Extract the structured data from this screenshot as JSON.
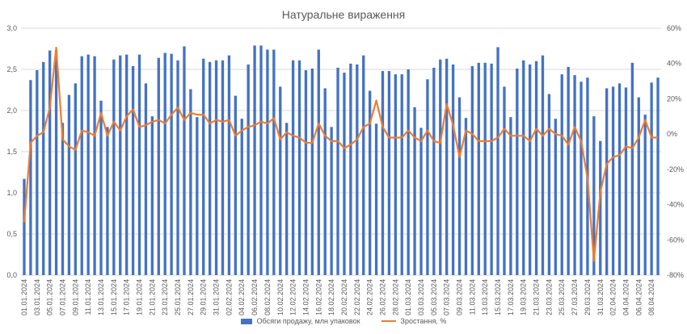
{
  "chart_data": {
    "type": "bar",
    "title": "Натуральне вираження",
    "colors": {
      "bars": "#4472C4",
      "line": "#ED7D31",
      "grid": "#d9d9d9",
      "text": "#595959"
    },
    "x": [
      "01.01.2024",
      "02.01.2024",
      "03.01.2024",
      "04.01.2024",
      "05.01.2024",
      "06.01.2024",
      "07.01.2024",
      "08.01.2024",
      "09.01.2024",
      "10.01.2024",
      "11.01.2024",
      "12.01.2024",
      "13.01.2024",
      "14.01.2024",
      "15.01.2024",
      "16.01.2024",
      "17.01.2024",
      "18.01.2024",
      "19.01.2024",
      "20.01.2024",
      "21.01.2024",
      "22.01.2024",
      "23.01.2024",
      "24.01.2024",
      "25.01.2024",
      "26.01.2024",
      "27.01.2024",
      "28.01.2024",
      "29.01.2024",
      "30.01.2024",
      "31.01.2024",
      "01.02.2024",
      "02.02.2024",
      "03.02.2024",
      "04.02.2024",
      "05.02.2024",
      "06.02.2024",
      "07.02.2024",
      "08.02.2024",
      "09.02.2024",
      "10.02.2024",
      "11.02.2024",
      "12.02.2024",
      "13.02.2024",
      "14.02.2024",
      "15.02.2024",
      "16.02.2024",
      "17.02.2024",
      "18.02.2024",
      "19.02.2024",
      "20.02.2024",
      "21.02.2024",
      "22.02.2024",
      "23.02.2024",
      "24.02.2024",
      "25.02.2024",
      "26.02.2024",
      "27.02.2024",
      "28.02.2024",
      "29.02.2024",
      "01.03.2024",
      "02.03.2024",
      "03.03.2024",
      "04.03.2024",
      "05.03.2024",
      "06.03.2024",
      "07.03.2024",
      "08.03.2024",
      "09.03.2024",
      "10.03.2024",
      "11.03.2024",
      "12.03.2024",
      "13.03.2024",
      "14.03.2024",
      "15.03.2024",
      "16.03.2024",
      "17.03.2024",
      "18.03.2024",
      "19.03.2024",
      "20.03.2024",
      "21.03.2024",
      "22.03.2024",
      "23.03.2024",
      "24.03.2024",
      "25.03.2024",
      "26.03.2024",
      "27.03.2024",
      "28.03.2024",
      "29.03.2024",
      "30.03.2024",
      "31.03.2024",
      "01.04.2024",
      "02.04.2024",
      "03.04.2024",
      "04.04.2024",
      "05.04.2024",
      "06.04.2024",
      "07.04.2024",
      "08.04.2024",
      "09.04.2024"
    ],
    "tick_every": 2,
    "series": [
      {
        "name": "Обсяги продажу, млн упаковок",
        "type": "bar",
        "axis": "left",
        "values": [
          1.17,
          2.37,
          2.49,
          2.59,
          2.73,
          2.73,
          1.85,
          2.19,
          2.33,
          2.66,
          2.68,
          2.66,
          2.12,
          1.8,
          2.62,
          2.67,
          2.68,
          2.54,
          2.68,
          2.33,
          1.93,
          2.64,
          2.7,
          2.69,
          2.61,
          2.78,
          2.26,
          1.92,
          2.63,
          2.59,
          2.61,
          2.61,
          2.67,
          2.18,
          1.9,
          2.56,
          2.79,
          2.79,
          2.74,
          2.74,
          2.29,
          1.85,
          2.61,
          2.61,
          2.49,
          2.51,
          2.74,
          2.27,
          1.8,
          2.52,
          2.46,
          2.57,
          2.56,
          2.67,
          2.24,
          1.84,
          2.48,
          2.48,
          2.44,
          2.44,
          2.5,
          2.04,
          1.79,
          2.38,
          2.52,
          2.62,
          2.63,
          2.56,
          2.16,
          1.91,
          2.54,
          2.58,
          2.58,
          2.57,
          2.77,
          2.29,
          1.92,
          2.51,
          2.61,
          2.56,
          2.6,
          2.67,
          2.2,
          1.9,
          2.44,
          2.53,
          2.43,
          2.35,
          2.4,
          1.93,
          1.63,
          2.27,
          2.29,
          2.33,
          2.28,
          2.58,
          2.16,
          1.95,
          2.34,
          2.4
        ]
      },
      {
        "name": "Зростання, %",
        "type": "line",
        "axis": "right",
        "values": [
          -50,
          -5,
          -1,
          1,
          15,
          49,
          -3,
          -7,
          -9,
          2,
          1,
          -1,
          12,
          -1,
          7,
          2,
          10,
          14,
          4,
          5,
          7,
          8,
          6,
          11,
          15,
          8,
          12,
          11,
          11,
          6,
          8,
          7,
          8,
          -1,
          2,
          4,
          5,
          7,
          6,
          9,
          -3,
          1,
          -1,
          -2,
          -5,
          -5,
          6,
          -1,
          -4,
          -4,
          -8,
          -6,
          -3,
          4,
          6,
          19,
          4,
          -2,
          -2,
          -2,
          2,
          -2,
          -4,
          2,
          -4,
          -5,
          17,
          5,
          -13,
          2,
          0,
          -4,
          -4,
          -4,
          -2,
          3,
          -1,
          -1,
          -1,
          -4,
          3,
          -1,
          3,
          0,
          -1,
          -6,
          4,
          -4,
          -25,
          -72,
          -33,
          -17,
          -13,
          -12,
          -7,
          -8,
          -2,
          8,
          -2,
          -2
        ]
      }
    ],
    "y_left": {
      "min": 0,
      "max": 3.0,
      "ticks": [
        "0,0",
        "0,5",
        "1,0",
        "1,5",
        "2,0",
        "2,5",
        "3,0"
      ],
      "tick_values": [
        0,
        0.5,
        1,
        1.5,
        2,
        2.5,
        3
      ]
    },
    "y_right": {
      "min": -80,
      "max": 60,
      "ticks": [
        "-80%",
        "-60%",
        "-40%",
        "-20%",
        "0%",
        "20%",
        "40%",
        "60%"
      ],
      "tick_values": [
        -80,
        -60,
        -40,
        -20,
        0,
        20,
        40,
        60
      ]
    },
    "grid": true,
    "legend_position": "bottom"
  }
}
